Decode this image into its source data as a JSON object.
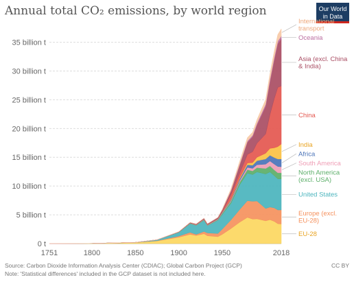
{
  "title": "Annual total CO₂ emissions, by world region",
  "logo": {
    "line1": "Our World",
    "line2": "in Data"
  },
  "footer": {
    "source": "Source: Carbon Dioxide Information Analysis Center (CDIAC); Global Carbon Project (GCP)",
    "note": "Note: 'Statistical differences' included in the GCP dataset is not included here.",
    "license": "CC BY"
  },
  "chart_data": {
    "type": "area",
    "stacked": true,
    "x_ticks": [
      "1751",
      "1800",
      "1850",
      "1900",
      "1950",
      "2018"
    ],
    "y_ticks": [
      "0 t",
      "5 billion t",
      "10 billion t",
      "15 billion t",
      "20 billion t",
      "25 billion t",
      "30 billion t",
      "35 billion t"
    ],
    "ylim": [
      0,
      36500000000
    ],
    "xlim": [
      1751,
      2018
    ],
    "grid": "horizontal",
    "legend": "right",
    "x": [
      1751,
      1800,
      1850,
      1875,
      1900,
      1913,
      1920,
      1929,
      1933,
      1945,
      1950,
      1960,
      1970,
      1979,
      1985,
      1990,
      2000,
      2005,
      2010,
      2014,
      2018
    ],
    "series": [
      {
        "name": "EU-28",
        "color": "#fcd760",
        "values": [
          0.009,
          0.03,
          0.18,
          0.45,
          1.1,
          1.6,
          1.4,
          1.7,
          1.35,
          1.2,
          1.6,
          2.6,
          3.7,
          4.55,
          4.25,
          4.3,
          3.95,
          4.15,
          3.85,
          3.45,
          3.4
        ]
      },
      {
        "name": "Europe (excl. EU-28)",
        "color": "#f5915d",
        "values": [
          0,
          0,
          0.01,
          0.05,
          0.2,
          0.35,
          0.2,
          0.4,
          0.5,
          0.55,
          0.9,
          1.5,
          2.2,
          2.9,
          3.1,
          3.1,
          2.15,
          2.2,
          2.35,
          2.4,
          2.45
        ]
      },
      {
        "name": "United States",
        "color": "#4ab4bd",
        "values": [
          0,
          0.001,
          0.02,
          0.15,
          0.65,
          1.5,
          1.55,
          1.95,
          1.25,
          2.3,
          2.55,
          2.9,
          4.3,
          4.8,
          4.65,
          5.05,
          6.0,
          6.1,
          5.6,
          5.4,
          5.4
        ]
      },
      {
        "name": "North America (excl. USA)",
        "color": "#5bae68",
        "values": [
          0,
          0,
          0,
          0.005,
          0.03,
          0.06,
          0.05,
          0.08,
          0.05,
          0.1,
          0.18,
          0.28,
          0.45,
          0.6,
          0.62,
          0.75,
          0.95,
          1.05,
          1.0,
          1.05,
          1.05
        ]
      },
      {
        "name": "South America",
        "color": "#ef9db5",
        "values": [
          0,
          0,
          0,
          0.005,
          0.02,
          0.04,
          0.04,
          0.05,
          0.05,
          0.07,
          0.09,
          0.15,
          0.25,
          0.4,
          0.45,
          0.5,
          0.75,
          0.85,
          1.0,
          1.1,
          1.05
        ]
      },
      {
        "name": "Africa",
        "color": "#4a73b8",
        "values": [
          0,
          0,
          0,
          0.005,
          0.01,
          0.02,
          0.03,
          0.04,
          0.04,
          0.06,
          0.1,
          0.15,
          0.3,
          0.45,
          0.55,
          0.7,
          0.9,
          1.0,
          1.15,
          1.3,
          1.35
        ]
      },
      {
        "name": "India",
        "color": "#fbc144",
        "values": [
          0,
          0,
          0,
          0.002,
          0.01,
          0.02,
          0.03,
          0.04,
          0.04,
          0.05,
          0.07,
          0.12,
          0.2,
          0.3,
          0.45,
          0.6,
          1.0,
          1.2,
          1.7,
          2.15,
          2.6
        ]
      },
      {
        "name": "China",
        "color": "#e4574f",
        "values": [
          0,
          0,
          0,
          0,
          0.005,
          0.01,
          0.01,
          0.02,
          0.02,
          0.03,
          0.08,
          0.8,
          0.8,
          1.5,
          1.9,
          2.45,
          3.35,
          5.9,
          8.6,
          10.3,
          10.1
        ]
      },
      {
        "name": "Asia (excl. China & India)",
        "color": "#a94d63",
        "values": [
          0,
          0,
          0,
          0.005,
          0.03,
          0.06,
          0.08,
          0.1,
          0.12,
          0.15,
          0.25,
          0.6,
          1.4,
          2.1,
          2.6,
          3.15,
          4.8,
          5.7,
          6.7,
          7.6,
          8.2
        ]
      },
      {
        "name": "Oceania",
        "color": "#bb6fa1",
        "values": [
          0,
          0,
          0,
          0.001,
          0.01,
          0.02,
          0.02,
          0.03,
          0.03,
          0.04,
          0.05,
          0.09,
          0.15,
          0.22,
          0.25,
          0.3,
          0.38,
          0.42,
          0.45,
          0.45,
          0.47
        ]
      },
      {
        "name": "International transport",
        "color": "#f7c9a6",
        "values": [
          0,
          0,
          0,
          0,
          0,
          0,
          0,
          0,
          0,
          0,
          0.1,
          0.3,
          0.5,
          0.6,
          0.55,
          0.65,
          0.8,
          1.0,
          1.1,
          1.15,
          1.25
        ]
      }
    ],
    "value_scale": 1000000000
  }
}
